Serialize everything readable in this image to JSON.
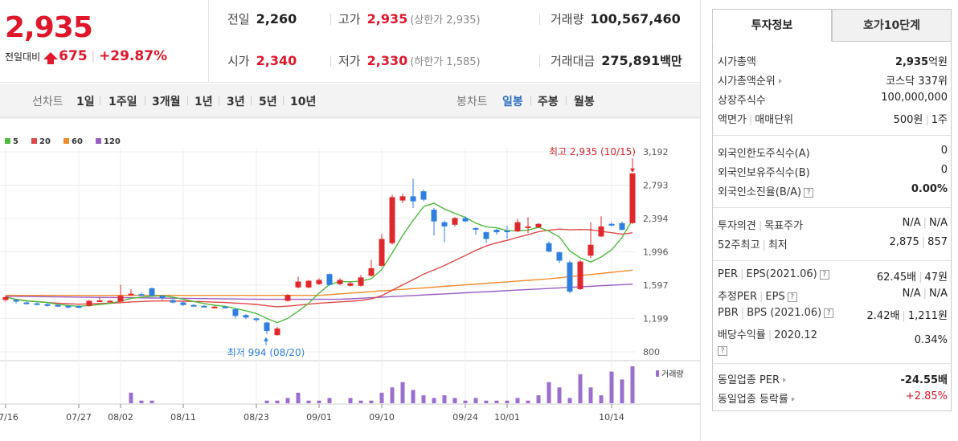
{
  "quote": {
    "price": "2,935",
    "diff_label": "전일대비",
    "diff_value": "675",
    "diff_percent": "+29.87%"
  },
  "stats": {
    "prev_label": "전일",
    "prev_value": "2,260",
    "high_label": "고가",
    "high_value": "2,935",
    "upper_limit": "(상한가 2,935)",
    "volume_label": "거래량",
    "volume_value": "100,567,460",
    "open_label": "시가",
    "open_value": "2,340",
    "low_label": "저가",
    "low_value": "2,330",
    "lower_limit": "(하한가 1,585)",
    "amount_label": "거래대금",
    "amount_value": "275,891",
    "amount_unit": "백만"
  },
  "toolbar": {
    "line_chart_label": "선차트",
    "line_periods": [
      "1일",
      "1주일",
      "3개월",
      "1년",
      "3년",
      "5년",
      "10년"
    ],
    "candle_chart_label": "봉차트",
    "candle_periods": [
      "일봉",
      "주봉",
      "월봉"
    ],
    "active_candle": "일봉"
  },
  "chart": {
    "legend": [
      {
        "name": "5",
        "color": "#4dbb3c"
      },
      {
        "name": "20",
        "color": "#e04848"
      },
      {
        "name": "60",
        "color": "#f28a2c"
      },
      {
        "name": "120",
        "color": "#9b5cc4"
      }
    ],
    "y_ticks": [
      "3,192",
      "2,793",
      "2,394",
      "1,996",
      "1,597",
      "1,199",
      "800"
    ],
    "x_ticks": [
      "07/16",
      "07/27",
      "08/02",
      "08/11",
      "08/23",
      "09/01",
      "09/10",
      "09/24",
      "10/01",
      "10/14"
    ],
    "high_annotation": "최고 2,935 (10/15)",
    "low_annotation": "최저 994 (08/20)",
    "volume_label": "거래량",
    "colors": {
      "up": "#e0272b",
      "down": "#2f7fe0",
      "volume": "#9b6fd0"
    }
  },
  "chart_data": {
    "type": "candlestick",
    "ylim": [
      800,
      3192
    ],
    "candles": [
      {
        "o": 1420,
        "c": 1455,
        "h": 1470,
        "l": 1400
      },
      {
        "o": 1420,
        "c": 1400,
        "h": 1430,
        "l": 1380
      },
      {
        "o": 1390,
        "c": 1375,
        "h": 1400,
        "l": 1365
      },
      {
        "o": 1380,
        "c": 1370,
        "h": 1390,
        "l": 1360
      },
      {
        "o": 1370,
        "c": 1350,
        "h": 1380,
        "l": 1340
      },
      {
        "o": 1360,
        "c": 1345,
        "h": 1370,
        "l": 1335
      },
      {
        "o": 1350,
        "c": 1330,
        "h": 1360,
        "l": 1320
      },
      {
        "o": 1345,
        "c": 1330,
        "h": 1355,
        "l": 1325
      },
      {
        "o": 1350,
        "c": 1410,
        "h": 1420,
        "l": 1340
      },
      {
        "o": 1410,
        "c": 1415,
        "h": 1460,
        "l": 1400
      },
      {
        "o": 1400,
        "c": 1410,
        "h": 1420,
        "l": 1390
      },
      {
        "o": 1400,
        "c": 1470,
        "h": 1600,
        "l": 1395
      },
      {
        "o": 1490,
        "c": 1495,
        "h": 1550,
        "l": 1470
      },
      {
        "o": 1490,
        "c": 1480,
        "h": 1510,
        "l": 1470
      },
      {
        "o": 1560,
        "c": 1470,
        "h": 1570,
        "l": 1460
      },
      {
        "o": 1470,
        "c": 1440,
        "h": 1480,
        "l": 1420
      },
      {
        "o": 1420,
        "c": 1390,
        "h": 1430,
        "l": 1380
      },
      {
        "o": 1390,
        "c": 1360,
        "h": 1400,
        "l": 1350
      },
      {
        "o": 1360,
        "c": 1350,
        "h": 1370,
        "l": 1345
      },
      {
        "o": 1350,
        "c": 1345,
        "h": 1360,
        "l": 1340
      },
      {
        "o": 1340,
        "c": 1340,
        "h": 1350,
        "l": 1330
      },
      {
        "o": 1340,
        "c": 1330,
        "h": 1350,
        "l": 1325
      },
      {
        "o": 1310,
        "c": 1230,
        "h": 1320,
        "l": 1200
      },
      {
        "o": 1240,
        "c": 1210,
        "h": 1250,
        "l": 1190
      },
      {
        "o": 1200,
        "c": 1180,
        "h": 1210,
        "l": 1160
      },
      {
        "o": 1150,
        "c": 1050,
        "h": 1160,
        "l": 1010
      },
      {
        "o": 1000,
        "c": 1080,
        "h": 1100,
        "l": 994
      },
      {
        "o": 1410,
        "c": 1480,
        "h": 1490,
        "l": 1400
      },
      {
        "o": 1570,
        "c": 1640,
        "h": 1700,
        "l": 1560
      },
      {
        "o": 1570,
        "c": 1650,
        "h": 1660,
        "l": 1560
      },
      {
        "o": 1610,
        "c": 1660,
        "h": 1680,
        "l": 1600
      },
      {
        "o": 1730,
        "c": 1600,
        "h": 1740,
        "l": 1590
      },
      {
        "o": 1610,
        "c": 1660,
        "h": 1680,
        "l": 1600
      },
      {
        "o": 1590,
        "c": 1620,
        "h": 1640,
        "l": 1580
      },
      {
        "o": 1590,
        "c": 1690,
        "h": 1720,
        "l": 1580
      },
      {
        "o": 1710,
        "c": 1800,
        "h": 1900,
        "l": 1700
      },
      {
        "o": 1830,
        "c": 2150,
        "h": 2210,
        "l": 1820
      },
      {
        "o": 2100,
        "c": 2650,
        "h": 2680,
        "l": 2080
      },
      {
        "o": 2610,
        "c": 2660,
        "h": 2690,
        "l": 2580
      },
      {
        "o": 2660,
        "c": 2600,
        "h": 2870,
        "l": 2520
      },
      {
        "o": 2720,
        "c": 2620,
        "h": 2740,
        "l": 2600
      },
      {
        "o": 2500,
        "c": 2360,
        "h": 2520,
        "l": 2190
      },
      {
        "o": 2350,
        "c": 2300,
        "h": 2370,
        "l": 2110
      },
      {
        "o": 2320,
        "c": 2400,
        "h": 2410,
        "l": 2300
      },
      {
        "o": 2400,
        "c": 2360,
        "h": 2420,
        "l": 2350
      },
      {
        "o": 2280,
        "c": 2270,
        "h": 2290,
        "l": 2200
      },
      {
        "o": 2230,
        "c": 2150,
        "h": 2240,
        "l": 2100
      },
      {
        "o": 2260,
        "c": 2230,
        "h": 2270,
        "l": 2200
      },
      {
        "o": 2250,
        "c": 2240,
        "h": 2310,
        "l": 2150
      },
      {
        "o": 2240,
        "c": 2350,
        "h": 2390,
        "l": 2230
      },
      {
        "o": 2300,
        "c": 2300,
        "h": 2410,
        "l": 2220
      },
      {
        "o": 2290,
        "c": 2330,
        "h": 2340,
        "l": 2280
      },
      {
        "o": 2100,
        "c": 2000,
        "h": 2120,
        "l": 1990
      },
      {
        "o": 1990,
        "c": 1890,
        "h": 2000,
        "l": 1860
      },
      {
        "o": 1870,
        "c": 1520,
        "h": 1890,
        "l": 1500
      },
      {
        "o": 1550,
        "c": 1880,
        "h": 1900,
        "l": 1540
      },
      {
        "o": 1950,
        "c": 2080,
        "h": 2350,
        "l": 1920
      },
      {
        "o": 2180,
        "c": 2300,
        "h": 2420,
        "l": 2170
      },
      {
        "o": 2330,
        "c": 2320,
        "h": 2350,
        "l": 2300
      },
      {
        "o": 2340,
        "c": 2260,
        "h": 2360,
        "l": 2250
      },
      {
        "o": 2340,
        "c": 2935,
        "h": 2935,
        "l": 2330
      }
    ],
    "volume": [
      0,
      0,
      0,
      0,
      0,
      0,
      0,
      0,
      0,
      0,
      0,
      0,
      4,
      1,
      1,
      0,
      0,
      0,
      0,
      0,
      0,
      0,
      0,
      0,
      0,
      1,
      1,
      2,
      4,
      1,
      1,
      2,
      0,
      2,
      1,
      1,
      4,
      6,
      8,
      5,
      3,
      2,
      3,
      2,
      1,
      2,
      1,
      1,
      1,
      2,
      1,
      3,
      8,
      6,
      2,
      11,
      6,
      3,
      12,
      9,
      14
    ]
  },
  "side": {
    "tab_invest": "투자정보",
    "tab_orderbook": "호가10단계",
    "market_cap_label": "시가총액",
    "market_cap_value": "2,935",
    "market_cap_unit": "억원",
    "market_cap_rank_label": "시가총액순위",
    "market_cap_rank_value": "코스닥 337위",
    "listed_shares_label": "상장주식수",
    "listed_shares_value": "100,000,000",
    "par_label": "액면가",
    "trade_unit_label": "매매단위",
    "par_value": "500원",
    "trade_unit_value": "1주",
    "foreign_limit_label": "외국인한도주식수(A)",
    "foreign_limit_value": "0",
    "foreign_hold_label": "외국인보유주식수(B)",
    "foreign_hold_value": "0",
    "foreign_ratio_label": "외국인소진율(B/A)",
    "foreign_ratio_value": "0.00%",
    "opinion_label": "투자의견",
    "target_label": "목표주가",
    "opinion_value": "N/A",
    "target_value": "N/A",
    "w52_label": "52주최고",
    "w52_low_label": "최저",
    "w52_high_value": "2,875",
    "w52_low_value": "857",
    "per_label": "PER",
    "eps_label": "EPS(2021.06)",
    "per_value": "62.45배",
    "eps_value": "47원",
    "est_per_label": "추정PER",
    "est_eps_label": "EPS",
    "est_per_value": "N/A",
    "est_eps_value": "N/A",
    "pbr_label": "PBR",
    "bps_label": "BPS (2021.06)",
    "pbr_value": "2.42배",
    "bps_value": "1,211원",
    "div_label": "배당수익률",
    "div_year": "2020.12",
    "div_value": "0.34%",
    "ind_per_label": "동일업종 PER",
    "ind_per_value": "-24.55배",
    "ind_change_label": "동일업종 등락률",
    "ind_change_value": "+2.85%"
  }
}
